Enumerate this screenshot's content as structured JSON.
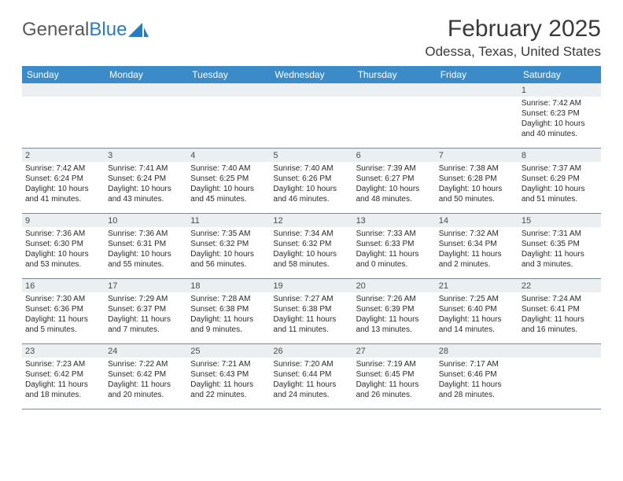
{
  "logo": {
    "text_gray": "General",
    "text_blue": "Blue",
    "sail_color": "#2a7bbf"
  },
  "title": "February 2025",
  "location": "Odessa, Texas, United States",
  "colors": {
    "header_bg": "#3b8bc8",
    "header_text": "#ffffff",
    "daynum_bg": "#eceff2",
    "row_border": "#7a8a9a",
    "body_text": "#2a2a2a"
  },
  "day_headers": [
    "Sunday",
    "Monday",
    "Tuesday",
    "Wednesday",
    "Thursday",
    "Friday",
    "Saturday"
  ],
  "weeks": [
    [
      {
        "n": "",
        "sr": "",
        "ss": "",
        "dl": ""
      },
      {
        "n": "",
        "sr": "",
        "ss": "",
        "dl": ""
      },
      {
        "n": "",
        "sr": "",
        "ss": "",
        "dl": ""
      },
      {
        "n": "",
        "sr": "",
        "ss": "",
        "dl": ""
      },
      {
        "n": "",
        "sr": "",
        "ss": "",
        "dl": ""
      },
      {
        "n": "",
        "sr": "",
        "ss": "",
        "dl": ""
      },
      {
        "n": "1",
        "sr": "Sunrise: 7:42 AM",
        "ss": "Sunset: 6:23 PM",
        "dl": "Daylight: 10 hours and 40 minutes."
      }
    ],
    [
      {
        "n": "2",
        "sr": "Sunrise: 7:42 AM",
        "ss": "Sunset: 6:24 PM",
        "dl": "Daylight: 10 hours and 41 minutes."
      },
      {
        "n": "3",
        "sr": "Sunrise: 7:41 AM",
        "ss": "Sunset: 6:24 PM",
        "dl": "Daylight: 10 hours and 43 minutes."
      },
      {
        "n": "4",
        "sr": "Sunrise: 7:40 AM",
        "ss": "Sunset: 6:25 PM",
        "dl": "Daylight: 10 hours and 45 minutes."
      },
      {
        "n": "5",
        "sr": "Sunrise: 7:40 AM",
        "ss": "Sunset: 6:26 PM",
        "dl": "Daylight: 10 hours and 46 minutes."
      },
      {
        "n": "6",
        "sr": "Sunrise: 7:39 AM",
        "ss": "Sunset: 6:27 PM",
        "dl": "Daylight: 10 hours and 48 minutes."
      },
      {
        "n": "7",
        "sr": "Sunrise: 7:38 AM",
        "ss": "Sunset: 6:28 PM",
        "dl": "Daylight: 10 hours and 50 minutes."
      },
      {
        "n": "8",
        "sr": "Sunrise: 7:37 AM",
        "ss": "Sunset: 6:29 PM",
        "dl": "Daylight: 10 hours and 51 minutes."
      }
    ],
    [
      {
        "n": "9",
        "sr": "Sunrise: 7:36 AM",
        "ss": "Sunset: 6:30 PM",
        "dl": "Daylight: 10 hours and 53 minutes."
      },
      {
        "n": "10",
        "sr": "Sunrise: 7:36 AM",
        "ss": "Sunset: 6:31 PM",
        "dl": "Daylight: 10 hours and 55 minutes."
      },
      {
        "n": "11",
        "sr": "Sunrise: 7:35 AM",
        "ss": "Sunset: 6:32 PM",
        "dl": "Daylight: 10 hours and 56 minutes."
      },
      {
        "n": "12",
        "sr": "Sunrise: 7:34 AM",
        "ss": "Sunset: 6:32 PM",
        "dl": "Daylight: 10 hours and 58 minutes."
      },
      {
        "n": "13",
        "sr": "Sunrise: 7:33 AM",
        "ss": "Sunset: 6:33 PM",
        "dl": "Daylight: 11 hours and 0 minutes."
      },
      {
        "n": "14",
        "sr": "Sunrise: 7:32 AM",
        "ss": "Sunset: 6:34 PM",
        "dl": "Daylight: 11 hours and 2 minutes."
      },
      {
        "n": "15",
        "sr": "Sunrise: 7:31 AM",
        "ss": "Sunset: 6:35 PM",
        "dl": "Daylight: 11 hours and 3 minutes."
      }
    ],
    [
      {
        "n": "16",
        "sr": "Sunrise: 7:30 AM",
        "ss": "Sunset: 6:36 PM",
        "dl": "Daylight: 11 hours and 5 minutes."
      },
      {
        "n": "17",
        "sr": "Sunrise: 7:29 AM",
        "ss": "Sunset: 6:37 PM",
        "dl": "Daylight: 11 hours and 7 minutes."
      },
      {
        "n": "18",
        "sr": "Sunrise: 7:28 AM",
        "ss": "Sunset: 6:38 PM",
        "dl": "Daylight: 11 hours and 9 minutes."
      },
      {
        "n": "19",
        "sr": "Sunrise: 7:27 AM",
        "ss": "Sunset: 6:38 PM",
        "dl": "Daylight: 11 hours and 11 minutes."
      },
      {
        "n": "20",
        "sr": "Sunrise: 7:26 AM",
        "ss": "Sunset: 6:39 PM",
        "dl": "Daylight: 11 hours and 13 minutes."
      },
      {
        "n": "21",
        "sr": "Sunrise: 7:25 AM",
        "ss": "Sunset: 6:40 PM",
        "dl": "Daylight: 11 hours and 14 minutes."
      },
      {
        "n": "22",
        "sr": "Sunrise: 7:24 AM",
        "ss": "Sunset: 6:41 PM",
        "dl": "Daylight: 11 hours and 16 minutes."
      }
    ],
    [
      {
        "n": "23",
        "sr": "Sunrise: 7:23 AM",
        "ss": "Sunset: 6:42 PM",
        "dl": "Daylight: 11 hours and 18 minutes."
      },
      {
        "n": "24",
        "sr": "Sunrise: 7:22 AM",
        "ss": "Sunset: 6:42 PM",
        "dl": "Daylight: 11 hours and 20 minutes."
      },
      {
        "n": "25",
        "sr": "Sunrise: 7:21 AM",
        "ss": "Sunset: 6:43 PM",
        "dl": "Daylight: 11 hours and 22 minutes."
      },
      {
        "n": "26",
        "sr": "Sunrise: 7:20 AM",
        "ss": "Sunset: 6:44 PM",
        "dl": "Daylight: 11 hours and 24 minutes."
      },
      {
        "n": "27",
        "sr": "Sunrise: 7:19 AM",
        "ss": "Sunset: 6:45 PM",
        "dl": "Daylight: 11 hours and 26 minutes."
      },
      {
        "n": "28",
        "sr": "Sunrise: 7:17 AM",
        "ss": "Sunset: 6:46 PM",
        "dl": "Daylight: 11 hours and 28 minutes."
      },
      {
        "n": "",
        "sr": "",
        "ss": "",
        "dl": ""
      }
    ]
  ]
}
